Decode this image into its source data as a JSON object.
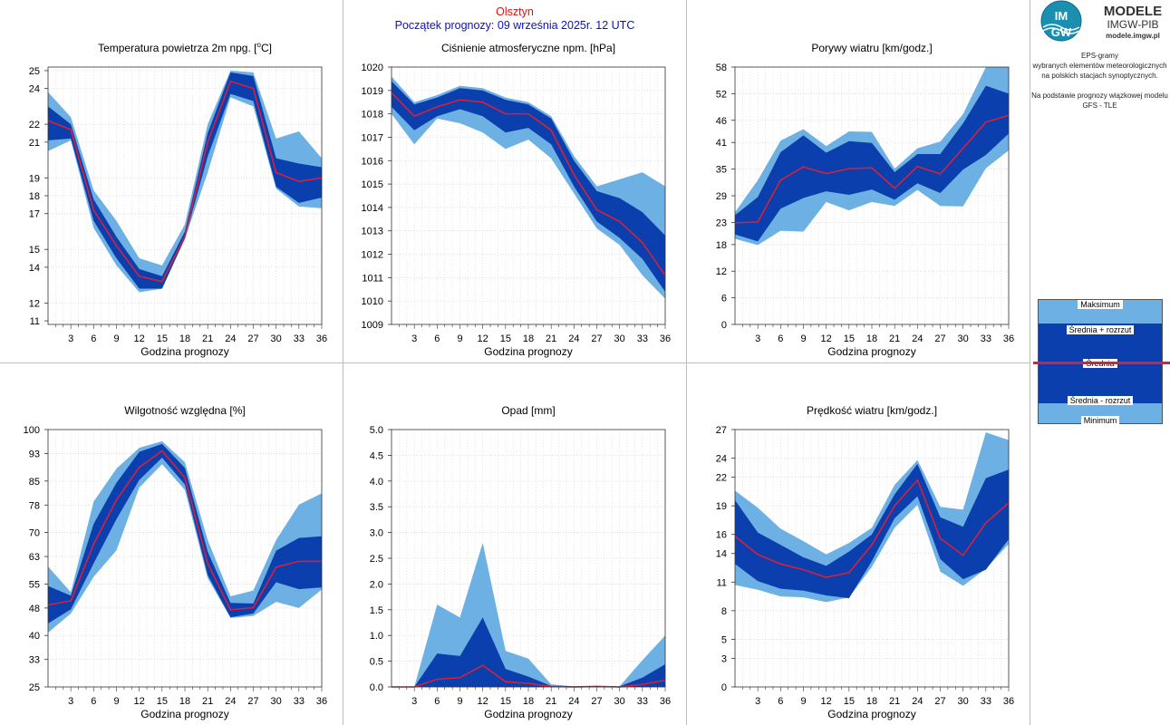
{
  "header": {
    "station": "Olsztyn",
    "start": "Początek prognozy: 09 września 2025r. 12 UTC"
  },
  "brand": {
    "logo_mark": "IMGW",
    "title": "MODELE",
    "subtitle": "IMGW-PIB",
    "url": "modele.imgw.pl"
  },
  "side": {
    "l1": "EPS-gramy",
    "l2": "wybranych elementów meteorologicznych",
    "l3": "na polskich stacjach  synoptycznych.",
    "l4": "Na podstawie prognozy wiązkowej modelu",
    "l5": "GFS - TLE"
  },
  "legend": {
    "max": "Maksimum",
    "upper": "Średnia + rozrzut",
    "mean": "Średnia",
    "lower": "Średnia - rozrzut",
    "min": "Minimum"
  },
  "colors": {
    "light_band": "#6cb0e4",
    "dark_band": "#0a3fad",
    "mean_line": "#d8203c"
  },
  "chart_data": [
    {
      "id": "temp",
      "type": "area",
      "title": "Temperatura powietrza 2m npg. [°C]",
      "xlabel": "Godzina prognozy",
      "x": [
        0,
        3,
        6,
        9,
        12,
        15,
        18,
        21,
        24,
        27,
        30,
        33,
        36
      ],
      "xticks": [
        "3",
        "6",
        "9",
        "12",
        "15",
        "18",
        "21",
        "24",
        "27",
        "30",
        "33",
        "36"
      ],
      "yticks": [
        "11",
        "12",
        "14",
        "15",
        "17",
        "18",
        "19",
        "21",
        "22",
        "24",
        "25"
      ],
      "ylim": [
        10.8,
        25.2
      ],
      "max": [
        23.8,
        22.4,
        18.3,
        16.6,
        14.5,
        14.1,
        16.4,
        22.0,
        25.0,
        24.9,
        21.2,
        21.6,
        20.1
      ],
      "upper": [
        23.0,
        22.0,
        17.8,
        15.7,
        13.9,
        13.5,
        16.0,
        21.5,
        24.9,
        24.7,
        20.1,
        19.8,
        19.6
      ],
      "mean": [
        22.2,
        21.7,
        17.2,
        15.2,
        13.5,
        13.2,
        15.7,
        21.0,
        24.4,
        24.0,
        19.3,
        18.8,
        19.0
      ],
      "lower": [
        21.1,
        21.2,
        16.6,
        14.5,
        12.8,
        12.8,
        15.6,
        20.2,
        23.7,
        23.3,
        18.5,
        17.6,
        17.9
      ],
      "min": [
        20.5,
        21.1,
        16.2,
        14.1,
        12.6,
        12.8,
        15.6,
        19.3,
        23.5,
        23.0,
        18.4,
        17.4,
        17.3
      ]
    },
    {
      "id": "pres",
      "type": "area",
      "title": "Ciśnienie atmosferyczne npm. [hPa]",
      "xlabel": "Godzina prognozy",
      "x": [
        0,
        3,
        6,
        9,
        12,
        15,
        18,
        21,
        24,
        27,
        30,
        33,
        36
      ],
      "xticks": [
        "3",
        "6",
        "9",
        "12",
        "15",
        "18",
        "21",
        "24",
        "27",
        "30",
        "33",
        "36"
      ],
      "yticks": [
        "1009",
        "1010",
        "1011",
        "1012",
        "1013",
        "1014",
        "1015",
        "1016",
        "1017",
        "1018",
        "1019",
        "1020"
      ],
      "ylim": [
        1009.0,
        1020.0
      ],
      "max": [
        1019.6,
        1018.5,
        1018.8,
        1019.2,
        1019.1,
        1018.7,
        1018.5,
        1017.9,
        1016.2,
        1014.9,
        1015.2,
        1015.5,
        1014.9
      ],
      "upper": [
        1019.4,
        1018.4,
        1018.7,
        1019.1,
        1019.0,
        1018.6,
        1018.4,
        1017.8,
        1016.0,
        1014.7,
        1014.4,
        1013.8,
        1012.8
      ],
      "mean": [
        1018.9,
        1017.9,
        1018.3,
        1018.6,
        1018.5,
        1018.0,
        1018.0,
        1017.3,
        1015.4,
        1013.9,
        1013.4,
        1012.5,
        1011.1
      ],
      "lower": [
        1018.3,
        1017.3,
        1017.9,
        1018.2,
        1017.9,
        1017.2,
        1017.4,
        1016.7,
        1014.9,
        1013.4,
        1012.7,
        1011.8,
        1010.4
      ],
      "min": [
        1018.0,
        1016.7,
        1017.8,
        1017.6,
        1017.2,
        1016.5,
        1016.9,
        1016.1,
        1014.6,
        1013.1,
        1012.4,
        1011.1,
        1010.1
      ]
    },
    {
      "id": "gust",
      "type": "area",
      "title": "Porywy wiatru [km/godz.]",
      "xlabel": "Godzina prognozy",
      "x": [
        0,
        3,
        6,
        9,
        12,
        15,
        18,
        21,
        24,
        27,
        30,
        33,
        36
      ],
      "xticks": [
        "3",
        "6",
        "9",
        "12",
        "15",
        "18",
        "21",
        "24",
        "27",
        "30",
        "33",
        "36"
      ],
      "yticks": [
        "0",
        "6",
        "12",
        "18",
        "23",
        "29",
        "35",
        "41",
        "46",
        "52",
        "58"
      ],
      "ylim": [
        0,
        58
      ],
      "max": [
        25.3,
        32.5,
        41.4,
        44.0,
        40.2,
        43.5,
        43.4,
        35.1,
        39.7,
        41.2,
        47.4,
        58.0,
        58.0
      ],
      "upper": [
        24.6,
        28.7,
        38.8,
        42.6,
        38.7,
        41.3,
        40.9,
        34.3,
        38.4,
        38.4,
        45.3,
        53.8,
        52.0
      ],
      "mean": [
        22.9,
        23.1,
        32.5,
        35.5,
        34.0,
        35.1,
        35.3,
        30.7,
        35.6,
        33.9,
        39.7,
        45.6,
        47.1
      ],
      "lower": [
        20.3,
        18.7,
        26.1,
        28.5,
        30.0,
        29.2,
        30.4,
        28.1,
        31.8,
        29.6,
        34.9,
        38.2,
        43.0
      ],
      "min": [
        19.3,
        17.9,
        21.1,
        20.9,
        27.6,
        25.7,
        27.6,
        26.7,
        30.3,
        26.7,
        26.6,
        35.2,
        39.2
      ]
    },
    {
      "id": "hum",
      "type": "area",
      "title": "Wilgotność względna [%]",
      "xlabel": "Godzina prognozy",
      "x": [
        0,
        3,
        6,
        9,
        12,
        15,
        18,
        21,
        24,
        27,
        30,
        33,
        36
      ],
      "xticks": [
        "3",
        "6",
        "9",
        "12",
        "15",
        "18",
        "21",
        "24",
        "27",
        "30",
        "33",
        "36"
      ],
      "yticks": [
        "25",
        "33",
        "40",
        "48",
        "55",
        "63",
        "70",
        "78",
        "85",
        "93",
        "100"
      ],
      "ylim": [
        25,
        100
      ],
      "max": [
        60.1,
        52.6,
        79.0,
        88.6,
        94.7,
        96.6,
        90.5,
        67.8,
        51.4,
        53.1,
        67.8,
        78.1,
        81.4
      ],
      "upper": [
        54.4,
        51.6,
        72.5,
        84.5,
        93.5,
        95.8,
        88.8,
        64.4,
        49.5,
        49.3,
        64.7,
        68.4,
        68.9
      ],
      "mean": [
        48.9,
        50.1,
        66.6,
        79.5,
        89.0,
        93.8,
        86.0,
        61.0,
        47.5,
        48.1,
        59.9,
        61.6,
        61.6
      ],
      "lower": [
        43.5,
        47.6,
        61.0,
        73.9,
        85.3,
        91.8,
        84.0,
        57.6,
        45.3,
        46.4,
        55.5,
        53.5,
        54.0
      ],
      "min": [
        40.8,
        46.4,
        57.1,
        64.8,
        83.1,
        89.9,
        82.4,
        56.7,
        45.1,
        45.7,
        49.8,
        48.0,
        53.4
      ]
    },
    {
      "id": "prec",
      "type": "area",
      "title": "Opad [mm]",
      "xlabel": "Godzina prognozy",
      "x": [
        0,
        3,
        6,
        9,
        12,
        15,
        18,
        21,
        24,
        27,
        30,
        33,
        36
      ],
      "xticks": [
        "3",
        "6",
        "9",
        "12",
        "15",
        "18",
        "21",
        "24",
        "27",
        "30",
        "33",
        "36"
      ],
      "yticks": [
        "0.0",
        "0.5",
        "1.0",
        "1.5",
        "2.0",
        "2.5",
        "3.0",
        "3.5",
        "4.0",
        "4.5",
        "5.0"
      ],
      "ylim": [
        0,
        5
      ],
      "max": [
        0,
        0,
        1.6,
        1.35,
        2.8,
        0.7,
        0.55,
        0.05,
        0.01,
        0.02,
        0.01,
        0.52,
        1.0
      ],
      "upper": [
        0,
        0,
        0.65,
        0.6,
        1.35,
        0.35,
        0.2,
        0.02,
        0.01,
        0.01,
        0.01,
        0.18,
        0.44
      ],
      "mean": [
        0,
        0,
        0.15,
        0.18,
        0.42,
        0.1,
        0.07,
        0.01,
        0,
        0.01,
        0,
        0.05,
        0.13
      ],
      "lower": [
        0,
        0,
        0,
        0,
        0,
        0,
        0,
        0,
        0,
        0,
        0,
        0,
        0
      ],
      "min": [
        0,
        0,
        0,
        0,
        0,
        0,
        0,
        0,
        0,
        0,
        0,
        0,
        0
      ]
    },
    {
      "id": "wind",
      "type": "area",
      "title": "Prędkość wiatru [km/godz.]",
      "xlabel": "Godzina prognozy",
      "x": [
        0,
        3,
        6,
        9,
        12,
        15,
        18,
        21,
        24,
        27,
        30,
        33,
        36
      ],
      "xticks": [
        "3",
        "6",
        "9",
        "12",
        "15",
        "18",
        "21",
        "24",
        "27",
        "30",
        "33",
        "36"
      ],
      "yticks": [
        "0",
        "3",
        "5",
        "8",
        "11",
        "14",
        "16",
        "19",
        "22",
        "24",
        "27"
      ],
      "ylim": [
        0,
        27
      ],
      "max": [
        20.6,
        18.8,
        16.6,
        15.3,
        13.9,
        15.1,
        16.7,
        21.2,
        23.8,
        18.9,
        18.6,
        26.7,
        25.9
      ],
      "upper": [
        19.6,
        16.2,
        14.9,
        13.6,
        12.7,
        14.2,
        16.0,
        20.2,
        23.4,
        17.8,
        16.8,
        21.9,
        22.8
      ],
      "mean": [
        15.8,
        13.9,
        12.9,
        12.3,
        11.5,
        12.0,
        14.9,
        19.0,
        21.7,
        15.6,
        13.8,
        17.2,
        19.3
      ],
      "lower": [
        12.9,
        11.1,
        10.3,
        10.1,
        9.6,
        9.3,
        13.2,
        17.7,
        20.0,
        13.4,
        11.3,
        12.3,
        15.5
      ],
      "min": [
        10.7,
        10.2,
        9.5,
        9.4,
        8.9,
        9.4,
        12.6,
        16.7,
        19.1,
        12.1,
        10.6,
        12.4,
        15.0
      ]
    }
  ]
}
